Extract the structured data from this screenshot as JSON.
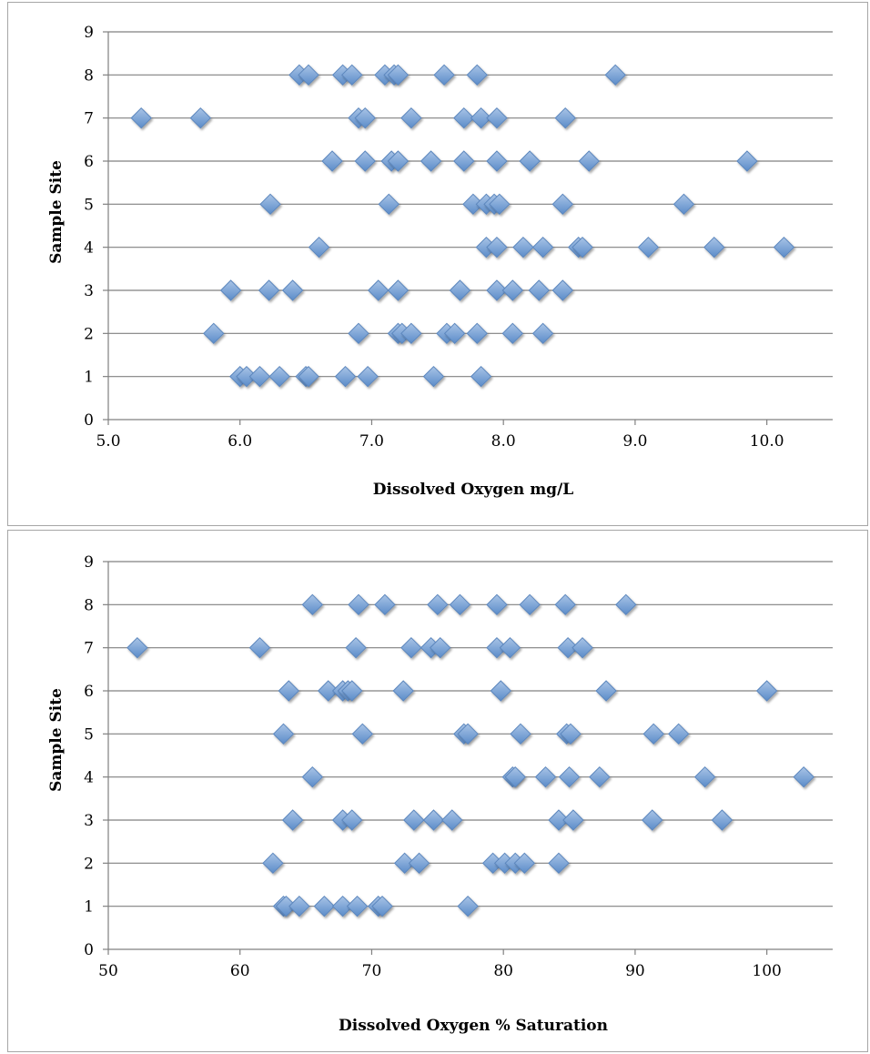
{
  "chart_data": [
    {
      "type": "scatter",
      "title": "",
      "xlabel": "Dissolved Oxygen mg/L",
      "ylabel": "Sample Site",
      "xlim": [
        5.0,
        10.5
      ],
      "ylim": [
        0,
        9
      ],
      "xticks": [
        "5.0",
        "6.0",
        "7.0",
        "8.0",
        "9.0",
        "10.0"
      ],
      "yticks": [
        "0",
        "1",
        "2",
        "3",
        "4",
        "5",
        "6",
        "7",
        "8",
        "9"
      ],
      "grid": true,
      "marker_color": "#4f81bd",
      "points": [
        {
          "x": 6.45,
          "y": 8
        },
        {
          "x": 6.52,
          "y": 8
        },
        {
          "x": 6.78,
          "y": 8
        },
        {
          "x": 6.85,
          "y": 8
        },
        {
          "x": 7.1,
          "y": 8
        },
        {
          "x": 7.17,
          "y": 8
        },
        {
          "x": 7.2,
          "y": 8
        },
        {
          "x": 7.55,
          "y": 8
        },
        {
          "x": 7.8,
          "y": 8
        },
        {
          "x": 8.85,
          "y": 8
        },
        {
          "x": 5.25,
          "y": 7
        },
        {
          "x": 5.7,
          "y": 7
        },
        {
          "x": 6.9,
          "y": 7
        },
        {
          "x": 6.95,
          "y": 7
        },
        {
          "x": 7.3,
          "y": 7
        },
        {
          "x": 7.7,
          "y": 7
        },
        {
          "x": 7.83,
          "y": 7
        },
        {
          "x": 7.95,
          "y": 7
        },
        {
          "x": 8.47,
          "y": 7
        },
        {
          "x": 6.7,
          "y": 6
        },
        {
          "x": 6.95,
          "y": 6
        },
        {
          "x": 7.15,
          "y": 6
        },
        {
          "x": 7.2,
          "y": 6
        },
        {
          "x": 7.45,
          "y": 6
        },
        {
          "x": 7.7,
          "y": 6
        },
        {
          "x": 7.95,
          "y": 6
        },
        {
          "x": 8.2,
          "y": 6
        },
        {
          "x": 8.65,
          "y": 6
        },
        {
          "x": 9.85,
          "y": 6
        },
        {
          "x": 6.23,
          "y": 5
        },
        {
          "x": 7.13,
          "y": 5
        },
        {
          "x": 7.77,
          "y": 5
        },
        {
          "x": 7.87,
          "y": 5
        },
        {
          "x": 7.93,
          "y": 5
        },
        {
          "x": 7.97,
          "y": 5
        },
        {
          "x": 8.45,
          "y": 5
        },
        {
          "x": 9.37,
          "y": 5
        },
        {
          "x": 6.6,
          "y": 4
        },
        {
          "x": 7.87,
          "y": 4
        },
        {
          "x": 7.95,
          "y": 4
        },
        {
          "x": 8.15,
          "y": 4
        },
        {
          "x": 8.3,
          "y": 4
        },
        {
          "x": 8.57,
          "y": 4
        },
        {
          "x": 8.6,
          "y": 4
        },
        {
          "x": 9.1,
          "y": 4
        },
        {
          "x": 9.6,
          "y": 4
        },
        {
          "x": 10.13,
          "y": 4
        },
        {
          "x": 5.93,
          "y": 3
        },
        {
          "x": 6.22,
          "y": 3
        },
        {
          "x": 6.4,
          "y": 3
        },
        {
          "x": 7.05,
          "y": 3
        },
        {
          "x": 7.2,
          "y": 3
        },
        {
          "x": 7.67,
          "y": 3
        },
        {
          "x": 7.95,
          "y": 3
        },
        {
          "x": 8.07,
          "y": 3
        },
        {
          "x": 8.27,
          "y": 3
        },
        {
          "x": 8.45,
          "y": 3
        },
        {
          "x": 5.8,
          "y": 2
        },
        {
          "x": 6.9,
          "y": 2
        },
        {
          "x": 7.2,
          "y": 2
        },
        {
          "x": 7.23,
          "y": 2
        },
        {
          "x": 7.3,
          "y": 2
        },
        {
          "x": 7.57,
          "y": 2
        },
        {
          "x": 7.63,
          "y": 2
        },
        {
          "x": 7.8,
          "y": 2
        },
        {
          "x": 8.07,
          "y": 2
        },
        {
          "x": 8.3,
          "y": 2
        },
        {
          "x": 6.0,
          "y": 1
        },
        {
          "x": 6.05,
          "y": 1
        },
        {
          "x": 6.15,
          "y": 1
        },
        {
          "x": 6.3,
          "y": 1
        },
        {
          "x": 6.5,
          "y": 1
        },
        {
          "x": 6.52,
          "y": 1
        },
        {
          "x": 6.8,
          "y": 1
        },
        {
          "x": 6.97,
          "y": 1
        },
        {
          "x": 7.47,
          "y": 1
        },
        {
          "x": 7.83,
          "y": 1
        }
      ]
    },
    {
      "type": "scatter",
      "title": "",
      "xlabel": "Dissolved Oxygen % Saturation",
      "ylabel": "Sample Site",
      "xlim": [
        50,
        105
      ],
      "ylim": [
        0,
        9
      ],
      "xticks": [
        "50",
        "60",
        "70",
        "80",
        "90",
        "100"
      ],
      "yticks": [
        "0",
        "1",
        "2",
        "3",
        "4",
        "5",
        "6",
        "7",
        "8",
        "9"
      ],
      "grid": true,
      "marker_color": "#4f81bd",
      "points": [
        {
          "x": 65.5,
          "y": 8
        },
        {
          "x": 69.0,
          "y": 8
        },
        {
          "x": 71.0,
          "y": 8
        },
        {
          "x": 75.0,
          "y": 8
        },
        {
          "x": 76.7,
          "y": 8
        },
        {
          "x": 79.5,
          "y": 8
        },
        {
          "x": 82.0,
          "y": 8
        },
        {
          "x": 84.7,
          "y": 8
        },
        {
          "x": 89.3,
          "y": 8
        },
        {
          "x": 52.2,
          "y": 7
        },
        {
          "x": 61.5,
          "y": 7
        },
        {
          "x": 68.8,
          "y": 7
        },
        {
          "x": 73.0,
          "y": 7
        },
        {
          "x": 74.5,
          "y": 7
        },
        {
          "x": 75.2,
          "y": 7
        },
        {
          "x": 79.5,
          "y": 7
        },
        {
          "x": 80.5,
          "y": 7
        },
        {
          "x": 84.9,
          "y": 7
        },
        {
          "x": 86.0,
          "y": 7
        },
        {
          "x": 63.7,
          "y": 6
        },
        {
          "x": 66.7,
          "y": 6
        },
        {
          "x": 67.8,
          "y": 6
        },
        {
          "x": 68.2,
          "y": 6
        },
        {
          "x": 68.5,
          "y": 6
        },
        {
          "x": 72.4,
          "y": 6
        },
        {
          "x": 79.8,
          "y": 6
        },
        {
          "x": 87.8,
          "y": 6
        },
        {
          "x": 100.0,
          "y": 6
        },
        {
          "x": 63.3,
          "y": 5
        },
        {
          "x": 69.3,
          "y": 5
        },
        {
          "x": 77.0,
          "y": 5
        },
        {
          "x": 77.3,
          "y": 5
        },
        {
          "x": 81.3,
          "y": 5
        },
        {
          "x": 84.8,
          "y": 5
        },
        {
          "x": 85.1,
          "y": 5
        },
        {
          "x": 91.4,
          "y": 5
        },
        {
          "x": 93.3,
          "y": 5
        },
        {
          "x": 65.5,
          "y": 4
        },
        {
          "x": 80.7,
          "y": 4
        },
        {
          "x": 80.9,
          "y": 4
        },
        {
          "x": 83.2,
          "y": 4
        },
        {
          "x": 85.0,
          "y": 4
        },
        {
          "x": 87.3,
          "y": 4
        },
        {
          "x": 95.3,
          "y": 4
        },
        {
          "x": 102.8,
          "y": 4
        },
        {
          "x": 64.0,
          "y": 3
        },
        {
          "x": 67.8,
          "y": 3
        },
        {
          "x": 68.5,
          "y": 3
        },
        {
          "x": 73.2,
          "y": 3
        },
        {
          "x": 74.7,
          "y": 3
        },
        {
          "x": 76.1,
          "y": 3
        },
        {
          "x": 84.2,
          "y": 3
        },
        {
          "x": 85.3,
          "y": 3
        },
        {
          "x": 91.3,
          "y": 3
        },
        {
          "x": 96.6,
          "y": 3
        },
        {
          "x": 62.5,
          "y": 2
        },
        {
          "x": 72.5,
          "y": 2
        },
        {
          "x": 73.6,
          "y": 2
        },
        {
          "x": 79.2,
          "y": 2
        },
        {
          "x": 80.1,
          "y": 2
        },
        {
          "x": 80.9,
          "y": 2
        },
        {
          "x": 81.6,
          "y": 2
        },
        {
          "x": 84.2,
          "y": 2
        },
        {
          "x": 63.3,
          "y": 1
        },
        {
          "x": 63.5,
          "y": 1
        },
        {
          "x": 64.5,
          "y": 1
        },
        {
          "x": 66.4,
          "y": 1
        },
        {
          "x": 67.8,
          "y": 1
        },
        {
          "x": 68.9,
          "y": 1
        },
        {
          "x": 70.5,
          "y": 1
        },
        {
          "x": 70.8,
          "y": 1
        },
        {
          "x": 77.3,
          "y": 1
        }
      ]
    }
  ]
}
